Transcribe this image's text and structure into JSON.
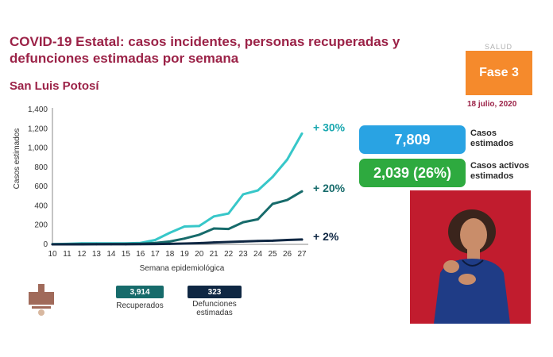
{
  "header": {
    "title": "COVID-19 Estatal: casos incidentes, personas recuperadas y defunciones estimadas por semana",
    "subtitle": "San Luis Potosí",
    "logo_text": "SALUD",
    "phase": "Fase 3",
    "date": "18 julio, 2020"
  },
  "stats": {
    "cases_value": "7,809",
    "cases_label_line1": "Casos",
    "cases_label_line2": "estimados",
    "active_value": "2,039 (26%)",
    "active_label_line1": "Casos activos",
    "active_label_line2": "estimados"
  },
  "legend": {
    "recovered_value": "3,914",
    "recovered_label": "Recuperados",
    "deaths_value": "323",
    "deaths_label_line1": "Defunciones",
    "deaths_label_line2": "estimadas"
  },
  "colors": {
    "accent": "#9b2247",
    "cases": "#37c7c9",
    "recovered": "#176b6b",
    "deaths": "#0f2743",
    "phase": "#f58a2c",
    "cases_box": "#29a3e3",
    "active_box": "#2eaa3f"
  },
  "chart_data": {
    "type": "line",
    "xlabel": "Semana epidemiológica",
    "ylabel": "Casos estimados",
    "x": [
      10,
      11,
      12,
      13,
      14,
      15,
      16,
      17,
      18,
      19,
      20,
      21,
      22,
      23,
      24,
      25,
      26,
      27
    ],
    "ylim": [
      0,
      1400
    ],
    "yticks": [
      "0",
      "200",
      "400",
      "600",
      "800",
      "1,000",
      "1,200",
      "1,400"
    ],
    "grid": false,
    "series": [
      {
        "name": "",
        "color": "#37c7c9",
        "annotation": "+ 30%",
        "values": [
          2,
          5,
          10,
          10,
          10,
          10,
          15,
          45,
          120,
          185,
          190,
          290,
          320,
          520,
          560,
          700,
          880,
          1150
        ]
      },
      {
        "name": "Recuperados",
        "color": "#176b6b",
        "annotation": "+ 20%",
        "values": [
          1,
          2,
          3,
          3,
          4,
          5,
          7,
          15,
          30,
          60,
          100,
          165,
          160,
          230,
          260,
          420,
          460,
          550
        ]
      },
      {
        "name": "Defunciones estimadas",
        "color": "#0f2743",
        "annotation": "+ 2%",
        "values": [
          0,
          0,
          0,
          1,
          1,
          1,
          2,
          3,
          5,
          8,
          12,
          20,
          25,
          30,
          35,
          38,
          45,
          50
        ]
      }
    ]
  }
}
